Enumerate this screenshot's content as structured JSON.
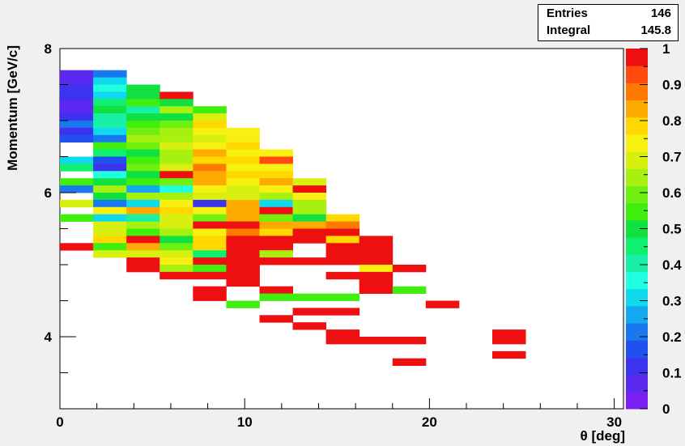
{
  "stats": {
    "entries_label": "Entries",
    "entries_value": "146",
    "integral_label": "Integral",
    "integral_value": "145.8"
  },
  "chart_data": {
    "type": "heatmap",
    "title": "",
    "xlabel": "θ [deg]",
    "ylabel": "Momentum [GeV/c]",
    "xlim": [
      0,
      30.5
    ],
    "ylim": [
      3.0,
      8.0
    ],
    "x_ticks": [
      0,
      10,
      20,
      30
    ],
    "y_ticks": [
      4,
      6,
      8
    ],
    "z_range": [
      0,
      1
    ],
    "z_ticks": [
      "0",
      "0.1",
      "0.2",
      "0.3",
      "0.4",
      "0.5",
      "0.6",
      "0.7",
      "0.8",
      "0.9",
      "1"
    ],
    "palette": [
      "#7a1ff0",
      "#5a28ee",
      "#3b33ee",
      "#2050ee",
      "#1a78ee",
      "#14a8ee",
      "#10d8ee",
      "#20ffe0",
      "#18f0a8",
      "#10f070",
      "#10e040",
      "#40ee10",
      "#70f010",
      "#a8f010",
      "#d8f010",
      "#f8f010",
      "#ffd800",
      "#ffaa00",
      "#ff7a00",
      "#ff4a10",
      "#ee1010"
    ],
    "bin_width": 1.8,
    "bin_height": 0.1,
    "bins": [
      [
        0,
        7.6,
        0.08
      ],
      [
        0,
        7.5,
        0.06
      ],
      [
        0,
        7.4,
        0.12
      ],
      [
        0,
        7.3,
        0.1
      ],
      [
        0,
        7.2,
        0.06
      ],
      [
        0,
        7.1,
        0.08
      ],
      [
        0,
        7.0,
        0.12
      ],
      [
        0,
        6.9,
        0.2
      ],
      [
        0,
        6.8,
        0.12
      ],
      [
        0,
        6.7,
        0.16
      ],
      [
        0,
        6.4,
        0.3
      ],
      [
        0,
        6.3,
        0.45
      ],
      [
        0,
        6.1,
        0.55
      ],
      [
        0,
        6.0,
        0.22
      ],
      [
        0,
        5.8,
        0.7
      ],
      [
        0,
        5.6,
        0.55
      ],
      [
        0,
        5.2,
        0.98
      ],
      [
        1.8,
        7.6,
        0.22
      ],
      [
        1.8,
        7.5,
        0.3
      ],
      [
        1.8,
        7.4,
        0.35
      ],
      [
        1.8,
        7.3,
        0.32
      ],
      [
        1.8,
        7.2,
        0.45
      ],
      [
        1.8,
        7.1,
        0.48
      ],
      [
        1.8,
        7.0,
        0.42
      ],
      [
        1.8,
        6.9,
        0.4
      ],
      [
        1.8,
        6.8,
        0.3
      ],
      [
        1.8,
        6.7,
        0.22
      ],
      [
        1.8,
        6.6,
        0.55
      ],
      [
        1.8,
        6.5,
        0.45
      ],
      [
        1.8,
        6.4,
        0.15
      ],
      [
        1.8,
        6.3,
        0.12
      ],
      [
        1.8,
        6.2,
        0.38
      ],
      [
        1.8,
        6.1,
        0.48
      ],
      [
        1.8,
        6.0,
        0.62
      ],
      [
        1.8,
        5.9,
        0.48
      ],
      [
        1.8,
        5.8,
        0.2
      ],
      [
        1.8,
        5.7,
        0.75
      ],
      [
        1.8,
        5.6,
        0.3
      ],
      [
        1.8,
        5.5,
        0.7
      ],
      [
        1.8,
        5.4,
        0.7
      ],
      [
        1.8,
        5.3,
        0.8
      ],
      [
        1.8,
        5.2,
        0.55
      ],
      [
        1.8,
        5.1,
        0.68
      ],
      [
        3.6,
        7.4,
        0.5
      ],
      [
        3.6,
        7.3,
        0.48
      ],
      [
        3.6,
        7.2,
        0.55
      ],
      [
        3.6,
        7.1,
        0.42
      ],
      [
        3.6,
        7.0,
        0.52
      ],
      [
        3.6,
        6.9,
        0.55
      ],
      [
        3.6,
        6.8,
        0.58
      ],
      [
        3.6,
        6.7,
        0.62
      ],
      [
        3.6,
        6.6,
        0.6
      ],
      [
        3.6,
        6.5,
        0.5
      ],
      [
        3.6,
        6.4,
        0.55
      ],
      [
        3.6,
        6.3,
        0.58
      ],
      [
        3.6,
        6.2,
        0.52
      ],
      [
        3.6,
        6.1,
        0.55
      ],
      [
        3.6,
        6.0,
        0.25
      ],
      [
        3.6,
        5.9,
        0.62
      ],
      [
        3.6,
        5.8,
        0.3
      ],
      [
        3.6,
        5.7,
        0.85
      ],
      [
        3.6,
        5.6,
        0.4
      ],
      [
        3.6,
        5.5,
        0.65
      ],
      [
        3.6,
        5.4,
        0.55
      ],
      [
        3.6,
        5.3,
        0.98
      ],
      [
        3.6,
        5.2,
        0.85
      ],
      [
        3.6,
        5.1,
        0.7
      ],
      [
        3.6,
        5.0,
        0.98
      ],
      [
        3.6,
        4.9,
        0.98
      ],
      [
        5.4,
        7.3,
        0.98
      ],
      [
        5.4,
        7.2,
        0.5
      ],
      [
        5.4,
        7.1,
        0.62
      ],
      [
        5.4,
        7.0,
        0.48
      ],
      [
        5.4,
        6.9,
        0.6
      ],
      [
        5.4,
        6.8,
        0.62
      ],
      [
        5.4,
        6.7,
        0.65
      ],
      [
        5.4,
        6.6,
        0.7
      ],
      [
        5.4,
        6.5,
        0.65
      ],
      [
        5.4,
        6.4,
        0.62
      ],
      [
        5.4,
        6.3,
        0.68
      ],
      [
        5.4,
        6.2,
        0.98
      ],
      [
        5.4,
        6.1,
        0.6
      ],
      [
        5.4,
        6.0,
        0.35
      ],
      [
        5.4,
        5.9,
        0.62
      ],
      [
        5.4,
        5.8,
        0.75
      ],
      [
        5.4,
        5.7,
        0.8
      ],
      [
        5.4,
        5.6,
        0.7
      ],
      [
        5.4,
        5.5,
        0.68
      ],
      [
        5.4,
        5.4,
        0.62
      ],
      [
        5.4,
        5.3,
        0.52
      ],
      [
        5.4,
        5.2,
        0.58
      ],
      [
        5.4,
        5.1,
        0.68
      ],
      [
        5.4,
        5.0,
        0.72
      ],
      [
        5.4,
        4.9,
        0.62
      ],
      [
        5.4,
        4.8,
        0.98
      ],
      [
        7.2,
        7.1,
        0.55
      ],
      [
        7.2,
        7.0,
        0.7
      ],
      [
        7.2,
        6.9,
        0.8
      ],
      [
        7.2,
        6.8,
        0.72
      ],
      [
        7.2,
        6.7,
        0.7
      ],
      [
        7.2,
        6.6,
        0.72
      ],
      [
        7.2,
        6.5,
        0.82
      ],
      [
        7.2,
        6.4,
        0.8
      ],
      [
        7.2,
        6.3,
        0.88
      ],
      [
        7.2,
        6.2,
        0.85
      ],
      [
        7.2,
        6.1,
        0.82
      ],
      [
        7.2,
        6.0,
        0.72
      ],
      [
        7.2,
        5.9,
        0.7
      ],
      [
        7.2,
        5.8,
        0.12
      ],
      [
        7.2,
        5.7,
        0.75
      ],
      [
        7.2,
        5.6,
        0.58
      ],
      [
        7.2,
        5.5,
        0.98
      ],
      [
        7.2,
        5.4,
        0.75
      ],
      [
        7.2,
        5.3,
        0.8
      ],
      [
        7.2,
        5.2,
        0.78
      ],
      [
        7.2,
        5.1,
        0.45
      ],
      [
        7.2,
        5.0,
        0.98
      ],
      [
        7.2,
        4.9,
        0.55
      ],
      [
        7.2,
        4.8,
        0.98
      ],
      [
        7.2,
        4.6,
        0.98
      ],
      [
        7.2,
        4.5,
        0.98
      ],
      [
        9.0,
        6.8,
        0.72
      ],
      [
        9.0,
        6.7,
        0.75
      ],
      [
        9.0,
        6.6,
        0.78
      ],
      [
        9.0,
        6.5,
        0.72
      ],
      [
        9.0,
        6.4,
        0.78
      ],
      [
        9.0,
        6.3,
        0.75
      ],
      [
        9.0,
        6.2,
        0.78
      ],
      [
        9.0,
        6.1,
        0.72
      ],
      [
        9.0,
        6.0,
        0.68
      ],
      [
        9.0,
        5.9,
        0.7
      ],
      [
        9.0,
        5.8,
        0.85
      ],
      [
        9.0,
        5.7,
        0.85
      ],
      [
        9.0,
        5.6,
        0.85
      ],
      [
        9.0,
        5.5,
        0.98
      ],
      [
        9.0,
        5.4,
        0.88
      ],
      [
        9.0,
        5.3,
        0.98
      ],
      [
        9.0,
        5.2,
        0.98
      ],
      [
        9.0,
        5.1,
        0.98
      ],
      [
        9.0,
        5.0,
        0.98
      ],
      [
        9.0,
        4.9,
        0.98
      ],
      [
        9.0,
        4.8,
        0.98
      ],
      [
        9.0,
        4.7,
        0.98
      ],
      [
        9.0,
        4.4,
        0.55
      ],
      [
        10.8,
        6.5,
        0.75
      ],
      [
        10.8,
        6.4,
        0.95
      ],
      [
        10.8,
        6.3,
        0.72
      ],
      [
        10.8,
        6.2,
        0.78
      ],
      [
        10.8,
        6.1,
        0.85
      ],
      [
        10.8,
        6.0,
        0.72
      ],
      [
        10.8,
        5.9,
        0.62
      ],
      [
        10.8,
        5.8,
        0.3
      ],
      [
        10.8,
        5.7,
        0.98
      ],
      [
        10.8,
        5.6,
        0.58
      ],
      [
        10.8,
        5.5,
        0.85
      ],
      [
        10.8,
        5.4,
        0.8
      ],
      [
        10.8,
        5.3,
        0.98
      ],
      [
        10.8,
        5.2,
        0.98
      ],
      [
        10.8,
        5.1,
        0.62
      ],
      [
        10.8,
        5.0,
        0.98
      ],
      [
        10.8,
        4.6,
        0.98
      ],
      [
        10.8,
        4.5,
        0.55
      ],
      [
        10.8,
        4.2,
        0.98
      ],
      [
        12.6,
        6.1,
        0.68
      ],
      [
        12.6,
        6.0,
        0.98
      ],
      [
        12.6,
        5.9,
        0.75
      ],
      [
        12.6,
        5.8,
        0.65
      ],
      [
        12.6,
        5.7,
        0.62
      ],
      [
        12.6,
        5.6,
        0.52
      ],
      [
        12.6,
        5.5,
        0.85
      ],
      [
        12.6,
        5.4,
        0.98
      ],
      [
        12.6,
        5.3,
        0.98
      ],
      [
        12.6,
        5.0,
        0.98
      ],
      [
        12.6,
        4.5,
        0.55
      ],
      [
        12.6,
        4.3,
        0.98
      ],
      [
        12.6,
        4.1,
        0.98
      ],
      [
        14.4,
        5.6,
        0.8
      ],
      [
        14.4,
        5.5,
        0.9
      ],
      [
        14.4,
        5.4,
        0.98
      ],
      [
        14.4,
        5.3,
        0.78
      ],
      [
        14.4,
        5.2,
        0.98
      ],
      [
        14.4,
        5.1,
        0.98
      ],
      [
        14.4,
        5.0,
        0.98
      ],
      [
        14.4,
        4.8,
        0.98
      ],
      [
        14.4,
        4.5,
        0.55
      ],
      [
        14.4,
        4.3,
        0.98
      ],
      [
        14.4,
        4.0,
        0.98
      ],
      [
        14.4,
        3.9,
        0.98
      ],
      [
        16.2,
        5.3,
        0.98
      ],
      [
        16.2,
        5.2,
        0.98
      ],
      [
        16.2,
        5.1,
        0.98
      ],
      [
        16.2,
        5.0,
        0.98
      ],
      [
        16.2,
        4.9,
        0.75
      ],
      [
        16.2,
        4.8,
        0.98
      ],
      [
        16.2,
        4.7,
        0.98
      ],
      [
        16.2,
        4.6,
        0.98
      ],
      [
        16.2,
        3.9,
        0.98
      ],
      [
        18.0,
        4.9,
        0.98
      ],
      [
        18.0,
        4.6,
        0.55
      ],
      [
        18.0,
        3.9,
        0.98
      ],
      [
        18.0,
        3.6,
        0.98
      ],
      [
        19.8,
        4.4,
        0.98
      ],
      [
        23.4,
        4.0,
        0.98
      ],
      [
        23.4,
        3.9,
        0.98
      ],
      [
        23.4,
        3.7,
        0.98
      ]
    ]
  }
}
